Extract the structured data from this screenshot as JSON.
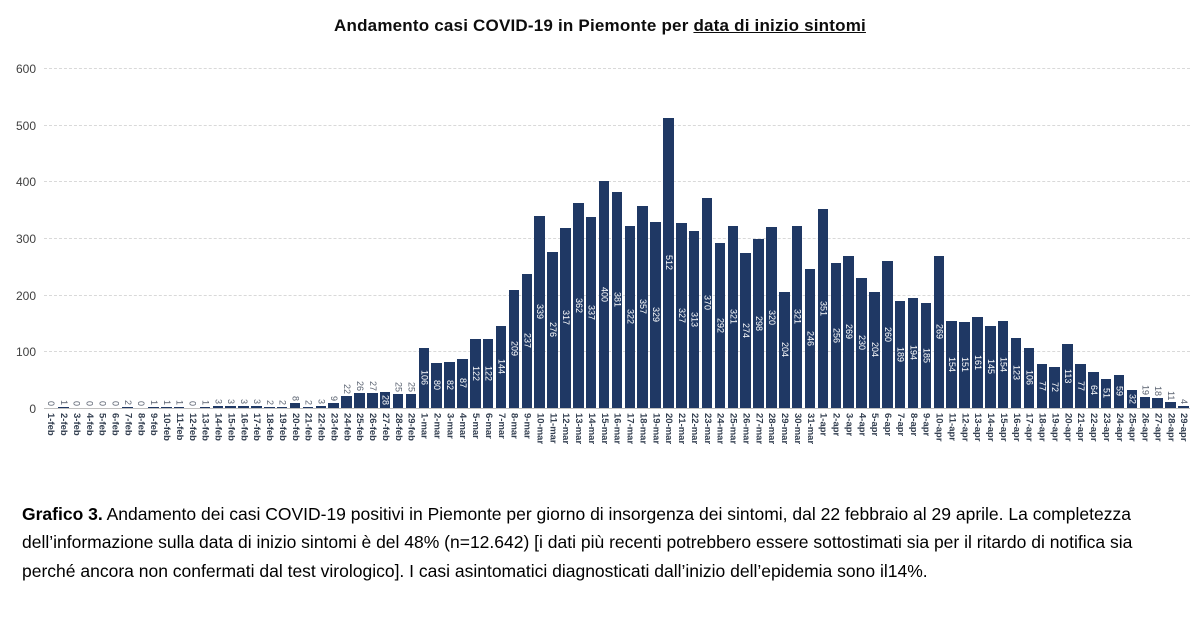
{
  "title": {
    "prefix": "Andamento casi COVID-19 in Piemonte per ",
    "underlined": "data di inizio sintomi"
  },
  "chart_data": {
    "type": "bar",
    "title": "Andamento casi COVID-19 in Piemonte per data di inizio sintomi",
    "xlabel": "",
    "ylabel": "",
    "ylim": [
      0,
      600
    ],
    "yticks": [
      0,
      100,
      200,
      300,
      400,
      500,
      600
    ],
    "grid": "horizontal-dashed",
    "legend_position": "none",
    "bar_color": "#1f3864",
    "label_inside_color": "#ffffff",
    "label_outside_color": "#5a6270",
    "categories": [
      "1-feb",
      "2-feb",
      "3-feb",
      "4-feb",
      "5-feb",
      "6-feb",
      "7-feb",
      "8-feb",
      "9-feb",
      "10-feb",
      "11-feb",
      "12-feb",
      "13-feb",
      "14-feb",
      "15-feb",
      "16-feb",
      "17-feb",
      "18-feb",
      "19-feb",
      "20-feb",
      "21-feb",
      "22-feb",
      "23-feb",
      "24-feb",
      "25-feb",
      "26-feb",
      "27-feb",
      "28-feb",
      "29-feb",
      "1-mar",
      "2-mar",
      "3-mar",
      "4-mar",
      "5-mar",
      "6-mar",
      "7-mar",
      "8-mar",
      "9-mar",
      "10-mar",
      "11-mar",
      "12-mar",
      "13-mar",
      "14-mar",
      "15-mar",
      "16-mar",
      "17-mar",
      "18-mar",
      "19-mar",
      "20-mar",
      "21-mar",
      "22-mar",
      "23-mar",
      "24-mar",
      "25-mar",
      "26-mar",
      "27-mar",
      "28-mar",
      "29-mar",
      "30-mar",
      "31-mar",
      "1-apr",
      "2-apr",
      "3-apr",
      "4-apr",
      "5-apr",
      "6-apr",
      "7-apr",
      "8-apr",
      "9-apr",
      "10-apr",
      "11-apr",
      "12-apr",
      "13-apr",
      "14-apr",
      "15-apr",
      "16-apr",
      "17-apr",
      "18-apr",
      "19-apr",
      "20-apr",
      "21-apr",
      "22-apr",
      "23-apr",
      "24-apr",
      "25-apr",
      "26-apr",
      "27-apr",
      "28-apr",
      "29-apr"
    ],
    "values": [
      0,
      1,
      0,
      0,
      0,
      0,
      2,
      0,
      1,
      1,
      1,
      0,
      1,
      3,
      3,
      3,
      3,
      2,
      2,
      8,
      2,
      3,
      9,
      22,
      26,
      27,
      28,
      25,
      25,
      106,
      80,
      82,
      87,
      122,
      122,
      144,
      209,
      237,
      339,
      276,
      317,
      362,
      337,
      400,
      381,
      322,
      357,
      329,
      512,
      327,
      313,
      370,
      292,
      321,
      274,
      298,
      320,
      204,
      321,
      246,
      351,
      256,
      269,
      230,
      204,
      260,
      189,
      194,
      185,
      269,
      154,
      151,
      161,
      145,
      154,
      123,
      106,
      77,
      72,
      113,
      77,
      64,
      51,
      59,
      32,
      19,
      18,
      11,
      4
    ]
  },
  "caption": {
    "lead": "Grafico 3.",
    "text": " Andamento dei casi COVID-19 positivi in Piemonte per giorno di insorgenza dei sintomi, dal 22 febbraio al 29 aprile. La completezza dell’informazione sulla data di inizio sintomi è del 48% (n=12.642) [i dati più recenti potrebbero essere sottostimati sia per il ritardo di notifica sia perché ancora non confermati dal test virologico]. I casi asintomatici diagnosticati dall’inizio dell’epidemia sono il14%."
  }
}
